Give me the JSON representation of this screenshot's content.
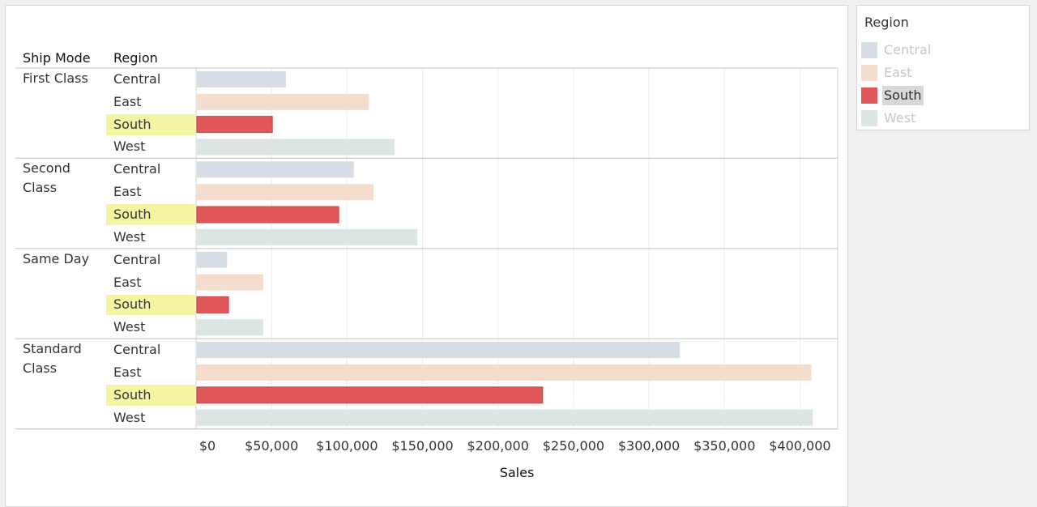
{
  "legend": {
    "title": "Region",
    "items": [
      {
        "label": "Central",
        "color": "#d6dde4",
        "state": "faded"
      },
      {
        "label": "East",
        "color": "#f4ddcc",
        "state": "faded"
      },
      {
        "label": "South",
        "color": "#e15759",
        "state": "active"
      },
      {
        "label": "West",
        "color": "#dbe5e4",
        "state": "faded"
      }
    ]
  },
  "highlight_color": "#f3f5a3",
  "chart_data": {
    "type": "bar",
    "orientation": "horizontal",
    "row_headers": [
      "Ship Mode",
      "Region"
    ],
    "xlabel": "Sales",
    "xlim": [
      0,
      425000
    ],
    "x_ticks": [
      "$0",
      "$50,000",
      "$100,000",
      "$150,000",
      "$200,000",
      "$250,000",
      "$300,000",
      "$350,000",
      "$400,000"
    ],
    "x_tick_values": [
      0,
      50000,
      100000,
      150000,
      200000,
      250000,
      300000,
      350000,
      400000
    ],
    "grid": true,
    "legend_position": "right",
    "highlighted_region": "South",
    "groups": [
      {
        "name": "First Class",
        "bars": [
          {
            "region": "Central",
            "value": 59000
          },
          {
            "region": "East",
            "value": 114000
          },
          {
            "region": "South",
            "value": 50000
          },
          {
            "region": "West",
            "value": 131000
          }
        ]
      },
      {
        "name": "Second Class",
        "bars": [
          {
            "region": "Central",
            "value": 104000
          },
          {
            "region": "East",
            "value": 117000
          },
          {
            "region": "South",
            "value": 94000
          },
          {
            "region": "West",
            "value": 146000
          }
        ]
      },
      {
        "name": "Same Day",
        "bars": [
          {
            "region": "Central",
            "value": 20000
          },
          {
            "region": "East",
            "value": 44000
          },
          {
            "region": "South",
            "value": 21000
          },
          {
            "region": "West",
            "value": 44000
          }
        ]
      },
      {
        "name": "Standard Class",
        "bars": [
          {
            "region": "Central",
            "value": 320000
          },
          {
            "region": "East",
            "value": 407000
          },
          {
            "region": "South",
            "value": 229000
          },
          {
            "region": "West",
            "value": 408000
          }
        ]
      }
    ]
  }
}
